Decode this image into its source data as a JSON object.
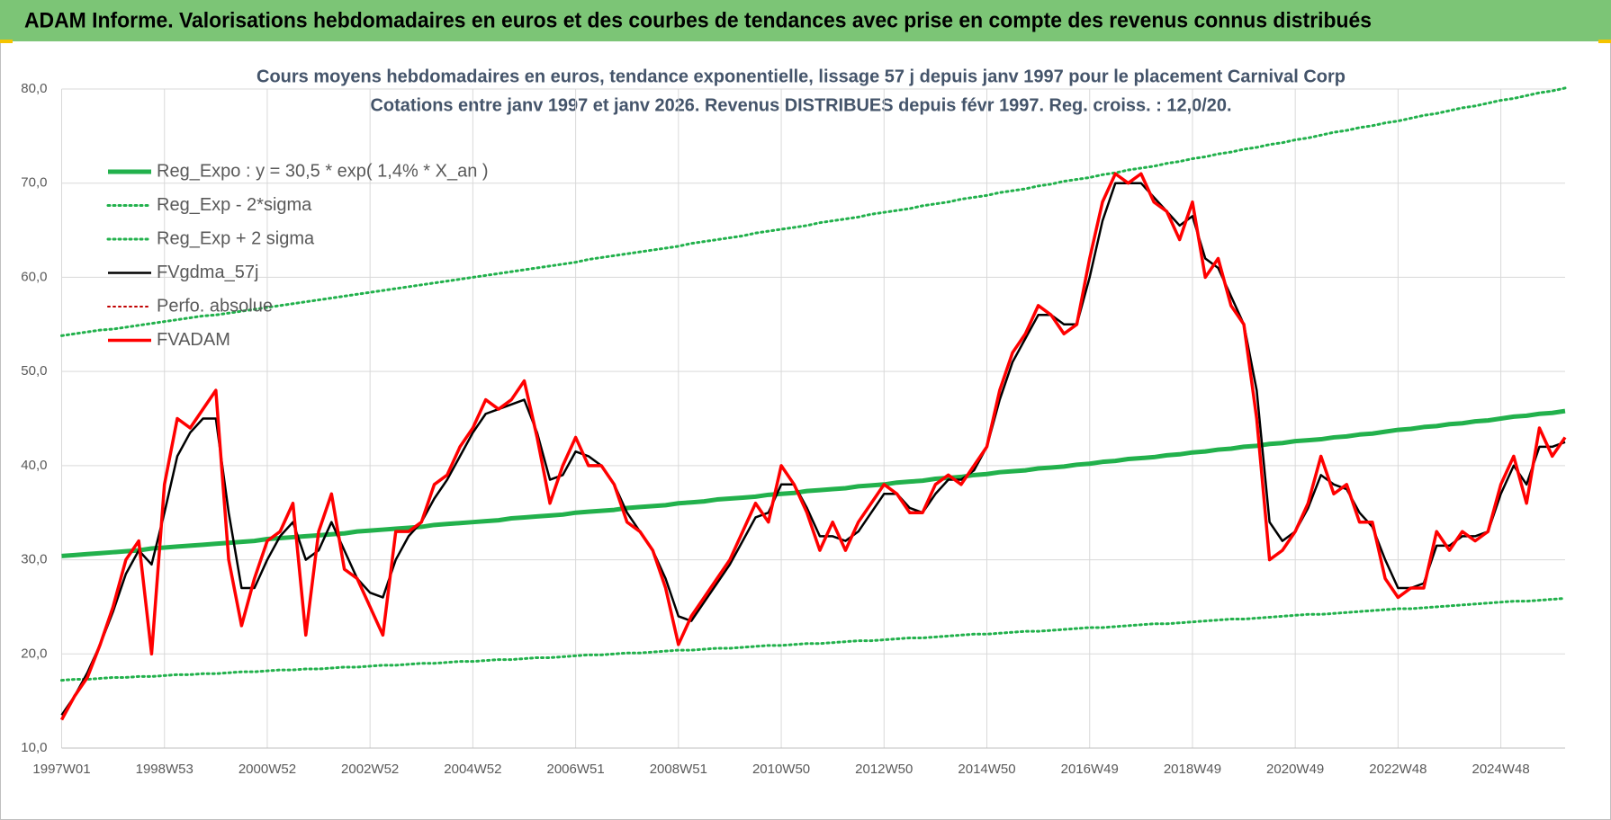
{
  "header": {
    "title": "ADAM Informe. Valorisations hebdomadaires en euros et des courbes de tendances avec prise en compte des revenus connus distribués"
  },
  "chart_data": {
    "type": "line",
    "title": "Cours moyens hebdomadaires en euros, tendance exponentielle, lissage 57 j depuis janv 1997  pour le placement Carnival Corp",
    "subtitle": "Cotations entre janv 1997 et janv 2026. Revenus DISTRIBUES depuis févr 1997. Reg. croiss. : 12,0/20.",
    "categories": [
      "1997W01",
      null,
      null,
      null,
      null,
      null,
      null,
      null,
      "1998W53",
      null,
      null,
      null,
      null,
      null,
      null,
      null,
      "2000W52",
      null,
      null,
      null,
      null,
      null,
      null,
      null,
      "2002W52",
      null,
      null,
      null,
      null,
      null,
      null,
      null,
      "2004W52",
      null,
      null,
      null,
      null,
      null,
      null,
      null,
      "2006W51",
      null,
      null,
      null,
      null,
      null,
      null,
      null,
      "2008W51",
      null,
      null,
      null,
      null,
      null,
      null,
      null,
      "2010W50",
      null,
      null,
      null,
      null,
      null,
      null,
      null,
      "2012W50",
      null,
      null,
      null,
      null,
      null,
      null,
      null,
      "2014W50",
      null,
      null,
      null,
      null,
      null,
      null,
      null,
      "2016W49",
      null,
      null,
      null,
      null,
      null,
      null,
      null,
      "2018W49",
      null,
      null,
      null,
      null,
      null,
      null,
      null,
      "2020W49",
      null,
      null,
      null,
      null,
      null,
      null,
      null,
      "2022W48",
      null,
      null,
      null,
      null,
      null,
      null,
      null,
      "2024W48",
      null,
      null,
      null,
      null,
      null
    ],
    "ylim": [
      10,
      80
    ],
    "yticks": [
      {
        "value": 10,
        "label": "10,0"
      },
      {
        "value": 20,
        "label": "20,0"
      },
      {
        "value": 30,
        "label": "30,0"
      },
      {
        "value": 40,
        "label": "40,0"
      },
      {
        "value": 50,
        "label": "50,0"
      },
      {
        "value": 60,
        "label": "60,0"
      },
      {
        "value": 70,
        "label": "70,0"
      },
      {
        "value": 80,
        "label": "80,0"
      }
    ],
    "grid": true,
    "legend": "top-left",
    "series": [
      {
        "name": "Reg_Expo : y = 30,5 * exp( 1,4% *  X_an )",
        "color": "#22b14c",
        "style": "solid",
        "width": 5,
        "values": [
          30.4,
          30.5,
          30.6,
          30.7,
          30.8,
          30.9,
          31.0,
          31.2,
          31.3,
          31.4,
          31.5,
          31.6,
          31.7,
          31.8,
          31.9,
          32.0,
          32.2,
          32.3,
          32.4,
          32.5,
          32.6,
          32.7,
          32.8,
          33.0,
          33.1,
          33.2,
          33.3,
          33.4,
          33.5,
          33.7,
          33.8,
          33.9,
          34.0,
          34.1,
          34.2,
          34.4,
          34.5,
          34.6,
          34.7,
          34.8,
          35.0,
          35.1,
          35.2,
          35.3,
          35.5,
          35.6,
          35.7,
          35.8,
          36.0,
          36.1,
          36.2,
          36.4,
          36.5,
          36.6,
          36.7,
          36.9,
          37.0,
          37.1,
          37.3,
          37.4,
          37.5,
          37.6,
          37.8,
          37.9,
          38.0,
          38.2,
          38.3,
          38.4,
          38.6,
          38.7,
          38.8,
          39.0,
          39.1,
          39.3,
          39.4,
          39.5,
          39.7,
          39.8,
          39.9,
          40.1,
          40.2,
          40.4,
          40.5,
          40.7,
          40.8,
          40.9,
          41.1,
          41.2,
          41.4,
          41.5,
          41.7,
          41.8,
          42.0,
          42.1,
          42.3,
          42.4,
          42.6,
          42.7,
          42.8,
          43.0,
          43.1,
          43.3,
          43.4,
          43.6,
          43.8,
          43.9,
          44.1,
          44.2,
          44.4,
          44.5,
          44.7,
          44.8,
          45.0,
          45.2,
          45.3,
          45.5,
          45.6,
          45.8
        ]
      },
      {
        "name": "Reg_Exp - 2*sigma",
        "color": "#22b14c",
        "style": "dotted",
        "width": 3,
        "values": [
          17.2,
          17.3,
          17.3,
          17.4,
          17.5,
          17.5,
          17.6,
          17.6,
          17.7,
          17.8,
          17.8,
          17.9,
          17.9,
          18.0,
          18.1,
          18.1,
          18.2,
          18.3,
          18.3,
          18.4,
          18.4,
          18.5,
          18.6,
          18.6,
          18.7,
          18.8,
          18.8,
          18.9,
          19.0,
          19.0,
          19.1,
          19.2,
          19.2,
          19.3,
          19.4,
          19.4,
          19.5,
          19.6,
          19.6,
          19.7,
          19.8,
          19.9,
          19.9,
          20.0,
          20.1,
          20.1,
          20.2,
          20.3,
          20.4,
          20.4,
          20.5,
          20.6,
          20.6,
          20.7,
          20.8,
          20.9,
          20.9,
          21.0,
          21.1,
          21.1,
          21.2,
          21.3,
          21.4,
          21.4,
          21.5,
          21.6,
          21.7,
          21.7,
          21.8,
          21.9,
          22.0,
          22.1,
          22.1,
          22.2,
          22.3,
          22.4,
          22.4,
          22.5,
          22.6,
          22.7,
          22.8,
          22.8,
          22.9,
          23.0,
          23.1,
          23.2,
          23.2,
          23.3,
          23.4,
          23.5,
          23.6,
          23.7,
          23.7,
          23.8,
          23.9,
          24.0,
          24.1,
          24.2,
          24.2,
          24.3,
          24.4,
          24.5,
          24.6,
          24.7,
          24.8,
          24.8,
          24.9,
          25.0,
          25.1,
          25.2,
          25.3,
          25.4,
          25.5,
          25.6,
          25.6,
          25.7,
          25.8,
          25.9
        ]
      },
      {
        "name": "Reg_Exp + 2 sigma",
        "color": "#22b14c",
        "style": "dotted",
        "width": 3,
        "values": [
          53.8,
          54.0,
          54.2,
          54.4,
          54.5,
          54.7,
          54.9,
          55.1,
          55.3,
          55.5,
          55.7,
          55.9,
          56.0,
          56.2,
          56.4,
          56.6,
          56.8,
          57.0,
          57.2,
          57.4,
          57.6,
          57.8,
          58.0,
          58.2,
          58.4,
          58.6,
          58.8,
          59.0,
          59.2,
          59.4,
          59.6,
          59.8,
          60.0,
          60.2,
          60.4,
          60.6,
          60.8,
          61.0,
          61.2,
          61.4,
          61.6,
          61.9,
          62.1,
          62.3,
          62.5,
          62.7,
          62.9,
          63.1,
          63.3,
          63.6,
          63.8,
          64.0,
          64.2,
          64.4,
          64.7,
          64.9,
          65.1,
          65.3,
          65.5,
          65.8,
          66.0,
          66.2,
          66.4,
          66.7,
          66.9,
          67.1,
          67.3,
          67.6,
          67.8,
          68.0,
          68.3,
          68.5,
          68.7,
          69.0,
          69.2,
          69.4,
          69.7,
          69.9,
          70.2,
          70.4,
          70.6,
          70.9,
          71.1,
          71.4,
          71.6,
          71.8,
          72.1,
          72.3,
          72.6,
          72.8,
          73.1,
          73.3,
          73.6,
          73.8,
          74.1,
          74.3,
          74.6,
          74.8,
          75.1,
          75.4,
          75.6,
          75.9,
          76.1,
          76.4,
          76.6,
          76.9,
          77.2,
          77.4,
          77.7,
          78.0,
          78.2,
          78.5,
          78.8,
          79.0,
          79.3,
          79.6,
          79.8,
          80.1
        ]
      },
      {
        "name": "FVgdma_57j",
        "color": "#000000",
        "style": "solid",
        "width": 2.5,
        "values": [
          13.5,
          15.5,
          18,
          21,
          24.5,
          28.5,
          31,
          29.5,
          35,
          41,
          43.5,
          45,
          45,
          35,
          27,
          27,
          30,
          32.5,
          34,
          30,
          31,
          34,
          31,
          28,
          26.5,
          26,
          30,
          32.5,
          34,
          36.5,
          38.5,
          41,
          43.5,
          45.5,
          46,
          46.5,
          47,
          43.5,
          38.5,
          39,
          41.5,
          41,
          40,
          38,
          35,
          33,
          31,
          28,
          24,
          23.5,
          25.5,
          27.5,
          29.5,
          32,
          34.5,
          35,
          38,
          38,
          35.5,
          32.5,
          32.5,
          32,
          33,
          35,
          37,
          37,
          35.5,
          35,
          37,
          38.5,
          38.5,
          39.5,
          42,
          47,
          51,
          53.5,
          56,
          56,
          55,
          55,
          60,
          66,
          70,
          70,
          70,
          68.5,
          67,
          65.5,
          66.5,
          62,
          61,
          58,
          55,
          48,
          34,
          32,
          33,
          35.5,
          39,
          38,
          37.5,
          35,
          33.5,
          30,
          27,
          27,
          27.5,
          31.5,
          31.5,
          32.5,
          32.5,
          33,
          37,
          40,
          38,
          42,
          42,
          42.5
        ]
      },
      {
        "name": "Perfo. absolue",
        "color": "#c00000",
        "style": "dotted",
        "width": 2,
        "values": [
          null,
          null,
          null,
          null,
          null,
          null,
          null,
          null,
          null,
          null,
          null,
          null,
          null,
          null,
          null,
          null,
          null,
          null,
          null,
          null,
          null,
          null,
          null,
          null,
          null,
          null,
          null,
          null,
          null,
          null,
          null,
          null,
          null,
          null,
          null,
          null,
          null,
          null,
          null,
          null,
          null,
          null,
          null,
          null,
          null,
          null,
          null,
          null,
          null,
          null,
          null,
          null,
          null,
          null,
          null,
          null,
          null,
          null,
          null,
          null,
          null,
          null,
          null,
          null,
          null,
          null,
          null,
          null,
          null,
          null,
          null,
          null,
          null,
          null,
          null,
          null,
          null,
          null,
          null,
          null,
          null,
          null,
          null,
          null,
          null,
          null,
          null,
          null,
          null,
          null,
          null,
          null,
          null,
          null,
          null,
          null,
          null,
          null,
          null,
          null,
          null,
          null,
          null,
          null,
          null,
          null,
          null,
          null,
          null,
          null,
          null,
          null,
          null,
          null,
          null,
          null,
          null,
          null
        ]
      },
      {
        "name": "FVADAM",
        "color": "#ff0000",
        "style": "solid",
        "width": 3.5,
        "values": [
          13,
          15.5,
          17.5,
          21,
          25,
          30,
          32,
          20,
          38,
          45,
          44,
          46,
          48,
          30,
          23,
          28,
          32,
          33,
          36,
          22,
          33,
          37,
          29,
          28,
          25,
          22,
          33,
          33,
          34,
          38,
          39,
          42,
          44,
          47,
          46,
          47,
          49,
          43,
          36,
          40,
          43,
          40,
          40,
          38,
          34,
          33,
          31,
          27,
          21,
          24,
          26,
          28,
          30,
          33,
          36,
          34,
          40,
          38,
          35,
          31,
          34,
          31,
          34,
          36,
          38,
          37,
          35,
          35,
          38,
          39,
          38,
          40,
          42,
          48,
          52,
          54,
          57,
          56,
          54,
          55,
          62,
          68,
          71,
          70,
          71,
          68,
          67,
          64,
          68,
          60,
          62,
          57,
          55,
          45,
          30,
          31,
          33,
          36,
          41,
          37,
          38,
          34,
          34,
          28,
          26,
          27,
          27,
          33,
          31,
          33,
          32,
          33,
          38,
          41,
          36,
          44,
          41,
          43
        ]
      }
    ]
  }
}
